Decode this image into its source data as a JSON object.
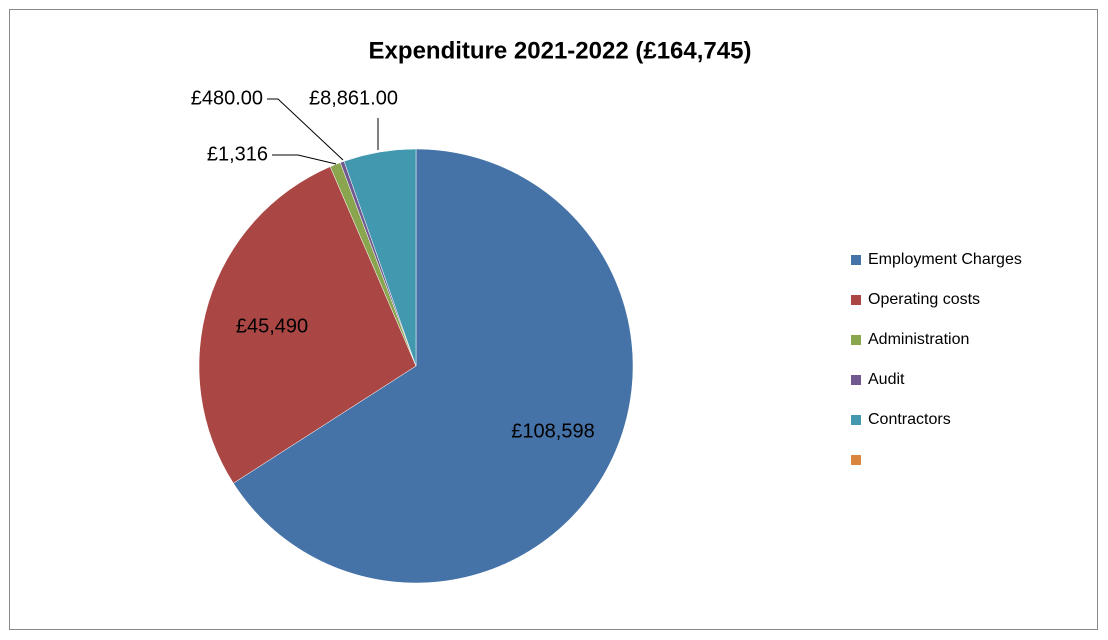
{
  "chart_data": {
    "type": "pie",
    "title": "Expenditure 2021-2022 (£164,745)",
    "categories": [
      "Employment Charges",
      "Operating costs",
      "Administration",
      "Audit",
      "Contractors",
      null
    ],
    "values": [
      108598,
      45490,
      1316,
      480,
      8861,
      0
    ],
    "value_labels": [
      "£108,598",
      "£45,490",
      "£1,316",
      "£480.00",
      "£8,861.00",
      null
    ],
    "colors": [
      "#4572a7",
      "#aa4643",
      "#89a54e",
      "#71588f",
      "#4198af",
      "#db843d"
    ],
    "legend": "right"
  }
}
